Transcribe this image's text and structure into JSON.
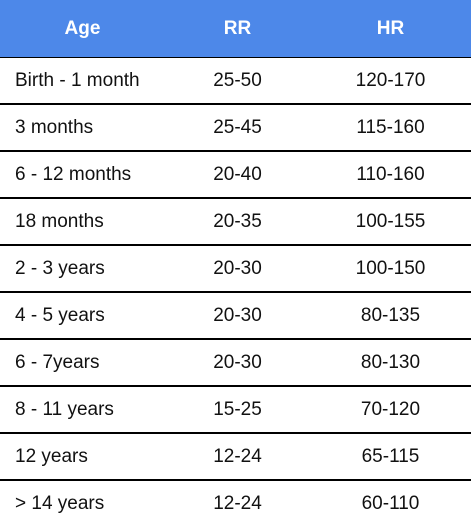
{
  "table": {
    "header": [
      "Age",
      "RR",
      "HR"
    ],
    "rows": [
      [
        "Birth - 1 month",
        "25-50",
        "120-170"
      ],
      [
        "3 months",
        "25-45",
        "115-160"
      ],
      [
        "6 - 12 months",
        "20-40",
        "110-160"
      ],
      [
        "18 months",
        "20-35",
        "100-155"
      ],
      [
        "2 - 3 years",
        "20-30",
        "100-150"
      ],
      [
        "4 - 5 years",
        "20-30",
        "80-135"
      ],
      [
        "6 - 7years",
        "20-30",
        "80-130"
      ],
      [
        "8 - 11 years",
        "15-25",
        "70-120"
      ],
      [
        "12 years",
        "12-24",
        "65-115"
      ],
      [
        "> 14 years",
        "12-24",
        "60-110"
      ]
    ]
  }
}
